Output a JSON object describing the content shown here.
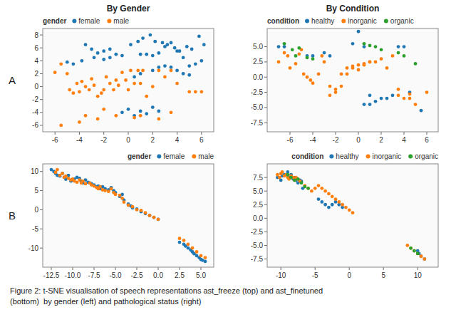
{
  "chart_data": [
    {
      "type": "scatter",
      "title": "By Gender",
      "legend_title": "gender",
      "legend": "upper left",
      "grid": false,
      "annotations": [
        "A"
      ],
      "series": [
        {
          "name": "female",
          "color": "#1f77b4",
          "x": [
            -5.0,
            -4.5,
            -3.8,
            -2.8,
            -2.0,
            -1.5,
            -1.0,
            -0.5,
            0.2,
            0.8,
            1.2,
            1.8,
            2.2,
            2.8,
            3.2,
            3.8,
            4.2,
            4.8,
            5.2,
            5.8,
            6.2,
            1.0,
            1.5,
            2.0,
            2.5,
            3.0,
            3.5,
            4.0,
            4.5,
            5.0,
            5.5,
            6.0,
            -3.5,
            -3.0,
            -2.5,
            -2.0,
            -1.5,
            0.5,
            1.0,
            2.0,
            2.5,
            3.0,
            3.5,
            4.0,
            4.5,
            5.0,
            -0.5,
            0.0,
            0.5,
            1.0,
            1.5,
            2.0,
            2.5
          ],
          "values": [
            3.8,
            3.5,
            4.0,
            4.5,
            5.5,
            5.8,
            5.0,
            4.8,
            6.5,
            7.0,
            7.5,
            8.0,
            7.0,
            6.8,
            6.5,
            6.0,
            5.5,
            6.2,
            5.8,
            7.8,
            6.5,
            5.0,
            5.0,
            4.8,
            5.2,
            6.2,
            6.8,
            5.5,
            4.5,
            3.2,
            3.5,
            4.0,
            6.5,
            5.8,
            5.2,
            4.2,
            4.5,
            1.5,
            2.0,
            2.5,
            3.0,
            3.2,
            3.0,
            2.5,
            2.0,
            1.8,
            -4.0,
            -3.5,
            -4.5,
            -3.8,
            -4.2,
            -3.2,
            -3.8
          ]
        },
        {
          "name": "male",
          "color": "#ff7f0e",
          "x": [
            -6.0,
            -5.5,
            -5.0,
            -4.8,
            -4.5,
            -4.2,
            -4.0,
            -3.8,
            -3.5,
            -3.2,
            -3.0,
            -2.8,
            -2.5,
            -2.2,
            -2.0,
            -1.8,
            -1.5,
            -1.2,
            -1.0,
            -0.8,
            -0.5,
            -0.2,
            0.0,
            0.2,
            0.5,
            0.8,
            1.0,
            1.2,
            1.5,
            2.0,
            2.5,
            3.0,
            3.5,
            4.0,
            5.0,
            5.5,
            6.0,
            -5.5,
            -4.0,
            -3.5,
            -2.5,
            -2.0,
            -1.0,
            0.5,
            1.0,
            2.5,
            3.5
          ],
          "values": [
            2.2,
            3.5,
            2.0,
            -0.5,
            -1.0,
            0.5,
            -0.8,
            0.8,
            0.0,
            -0.5,
            1.2,
            0.2,
            -1.5,
            -1.0,
            -0.5,
            1.5,
            0.5,
            -0.5,
            1.0,
            0.2,
            2.2,
            1.0,
            -0.5,
            2.5,
            0.5,
            2.5,
            0.5,
            2.5,
            -1.5,
            0.0,
            2.5,
            1.5,
            2.5,
            0.5,
            -0.8,
            -0.8,
            -0.8,
            -6.0,
            -5.5,
            -4.5,
            -5.0,
            -3.5,
            -4.5,
            -4.8,
            -4.5,
            -5.0,
            -4.0
          ]
        }
      ],
      "xlim": [
        -7,
        7
      ],
      "ylim": [
        -7,
        9
      ],
      "xticks": [
        -6,
        -4,
        -2,
        0,
        2,
        4,
        6
      ],
      "yticks": [
        -6,
        -4,
        -2,
        0,
        2,
        4,
        6,
        8
      ]
    },
    {
      "type": "scatter",
      "title": "By Condition",
      "legend_title": "condition",
      "legend": "upper left",
      "grid": false,
      "series": [
        {
          "name": "healthy",
          "color": "#1f77b4",
          "x": [
            -7.0,
            -6.5,
            -4.5,
            -4.0,
            -3.0,
            -2.5,
            0.5,
            1.0,
            1.5,
            2.0,
            2.5,
            3.0,
            3.5,
            4.0,
            4.5,
            5.5,
            -0.5,
            0.0,
            0.5,
            1.0
          ],
          "values": [
            5.0,
            5.0,
            3.5,
            3.5,
            4.0,
            3.5,
            -4.5,
            -4.5,
            -4.0,
            -3.5,
            -3.5,
            -3.0,
            5.0,
            5.0,
            -2.5,
            -5.5,
            5.5,
            7.5,
            5.0,
            -3.0
          ]
        },
        {
          "name": "inorganic",
          "color": "#ff7f0e",
          "x": [
            -7.0,
            -6.5,
            -6.2,
            -6.0,
            -5.5,
            -5.2,
            -5.0,
            -4.8,
            -4.5,
            -4.2,
            -4.0,
            -3.5,
            -3.2,
            -3.0,
            -2.5,
            -2.0,
            -1.5,
            -1.0,
            -0.5,
            0.0,
            0.5,
            1.0,
            1.5,
            2.0,
            2.5,
            3.0,
            3.5,
            4.0,
            4.5,
            5.0,
            6.0,
            -2.5,
            -2.0,
            -1.5,
            -1.0,
            -0.5,
            0.0,
            0.5,
            1.0,
            3.5,
            4.5
          ],
          "values": [
            2.5,
            4.0,
            3.5,
            1.5,
            2.2,
            3.8,
            4.5,
            0.5,
            0.0,
            -0.5,
            -1.0,
            0.5,
            3.5,
            2.5,
            -1.5,
            -2.0,
            -1.5,
            0.5,
            1.5,
            2.0,
            2.2,
            2.5,
            2.5,
            3.0,
            1.5,
            3.5,
            -2.0,
            -3.5,
            -2.8,
            -4.5,
            -2.5,
            -3.0,
            -2.5,
            0.5,
            1.5,
            1.8,
            1.2,
            2.0,
            2.5,
            -3.0,
            -3.5
          ]
        },
        {
          "name": "organic",
          "color": "#2ca02c",
          "x": [
            -6.5,
            -5.8,
            -5.5,
            -5.2,
            -4.5,
            -4.0,
            0.5,
            1.0,
            1.5,
            2.0,
            3.5,
            4.0,
            5.0
          ],
          "values": [
            5.5,
            4.5,
            3.5,
            4.8,
            3.2,
            3.0,
            5.5,
            5.2,
            5.0,
            4.5,
            4.0,
            3.5,
            2.2
          ]
        }
      ],
      "xlim": [
        -8,
        7
      ],
      "ylim": [
        -9,
        8
      ],
      "xticks": [
        -6,
        -4,
        -2,
        0,
        2,
        4,
        6
      ],
      "yticks": [
        -7.5,
        {
          "value": -5,
          "label": "-5.0"
        },
        -2.5,
        {
          "value": 0,
          "label": "0.0"
        },
        2.5,
        {
          "value": 5,
          "label": "5.0"
        }
      ]
    },
    {
      "type": "scatter",
      "legend_title": "gender",
      "legend": "upper right",
      "grid": false,
      "annotations": [
        "B"
      ],
      "series": [
        {
          "name": "female",
          "color": "#1f77b4",
          "x": [
            -12.5,
            -12.2,
            -12.0,
            -11.8,
            -11.5,
            -11.2,
            -11.0,
            -10.8,
            -10.5,
            -10.2,
            -10.0,
            -9.8,
            -9.5,
            -9.2,
            -9.0,
            -8.8,
            -8.5,
            -8.2,
            -8.0,
            -7.8,
            -7.5,
            -7.2,
            -7.0,
            -6.8,
            -6.5,
            -6.2,
            -5.8,
            -5.5,
            -5.2,
            -5.0,
            -4.5,
            -4.2,
            -4.0,
            -3.5,
            -3.2,
            -3.0,
            -2.5,
            -2.0,
            -1.5,
            -1.0,
            -0.5,
            0.0,
            2.5,
            3.0,
            3.2,
            3.5,
            3.8,
            4.0,
            4.2,
            4.5,
            4.8,
            5.0,
            5.2,
            5.5
          ],
          "values": [
            10.5,
            10.0,
            9.5,
            9.0,
            8.8,
            9.5,
            8.5,
            8.0,
            9.0,
            7.5,
            7.8,
            8.0,
            8.5,
            8.2,
            7.5,
            7.0,
            7.8,
            7.2,
            7.0,
            6.8,
            6.5,
            6.0,
            6.2,
            5.5,
            6.0,
            5.5,
            5.2,
            5.8,
            5.0,
            4.5,
            3.5,
            4.0,
            2.5,
            1.5,
            1.0,
            0.5,
            0.2,
            -0.5,
            -1.0,
            -1.5,
            -2.0,
            -2.5,
            -8.5,
            -9.0,
            -9.5,
            -10.0,
            -10.5,
            -11.0,
            -11.5,
            -12.0,
            -12.5,
            -13.0,
            -13.2,
            -13.5
          ]
        },
        {
          "name": "male",
          "color": "#ff7f0e",
          "x": [
            -12.0,
            -11.8,
            -11.5,
            -11.2,
            -11.0,
            -10.8,
            -10.5,
            -10.2,
            -10.0,
            -9.8,
            -9.5,
            -9.2,
            -9.0,
            -8.8,
            -8.5,
            -8.0,
            -7.8,
            -7.5,
            -7.2,
            -7.0,
            -6.8,
            -6.5,
            -6.2,
            -5.8,
            -5.5,
            -5.2,
            -5.0,
            -4.5,
            -4.2,
            -4.0,
            -3.5,
            -3.0,
            -2.5,
            -2.0,
            -1.5,
            -1.0,
            -0.5,
            0.0,
            2.5,
            3.0,
            3.5,
            4.0,
            4.5,
            5.0,
            5.5
          ],
          "values": [
            9.8,
            10.5,
            9.0,
            9.5,
            8.5,
            8.8,
            8.2,
            7.8,
            8.0,
            7.5,
            7.2,
            7.8,
            7.0,
            7.5,
            6.8,
            7.0,
            6.5,
            6.2,
            5.8,
            5.5,
            6.0,
            5.2,
            5.0,
            4.8,
            5.5,
            4.5,
            4.0,
            3.8,
            3.0,
            2.0,
            1.2,
            0.8,
            0.0,
            -0.2,
            -0.8,
            -1.5,
            -2.0,
            -2.5,
            -7.5,
            -8.0,
            -9.0,
            -10.0,
            -11.0,
            -12.0,
            -12.5
          ]
        }
      ],
      "xlim": [
        -13.5,
        6.5
      ],
      "ylim": [
        -15,
        12
      ],
      "xticks": [
        -12.5,
        {
          "value": -10,
          "label": "-10.0"
        },
        -7.5,
        {
          "value": -5,
          "label": "-5.0"
        },
        -2.5,
        {
          "value": 0,
          "label": "0.0"
        },
        2.5,
        {
          "value": 5,
          "label": "5.0"
        }
      ],
      "yticks": [
        -10,
        -5,
        0,
        5,
        10
      ]
    },
    {
      "type": "scatter",
      "legend_title": "condition",
      "legend": "upper right",
      "grid": false,
      "series": [
        {
          "name": "healthy",
          "color": "#1f77b4",
          "x": [
            -10.5,
            -10.0,
            -9.8,
            -9.5,
            -9.0,
            -8.8,
            -8.5,
            -8.2,
            -8.0,
            -7.8,
            -7.5,
            -7.2,
            -7.0,
            -6.8,
            -4.5,
            -4.0,
            -3.5,
            -3.0,
            -2.5,
            -2.0,
            -1.5,
            -1.0,
            10.0,
            10.2,
            10.5,
            11.0
          ],
          "values": [
            7.5,
            7.0,
            7.8,
            8.0,
            8.5,
            7.5,
            8.0,
            7.2,
            7.5,
            7.0,
            6.5,
            7.0,
            6.8,
            5.5,
            3.5,
            3.0,
            2.5,
            2.0,
            2.5,
            3.0,
            2.5,
            2.0,
            -6.0,
            -6.5,
            -7.0,
            -7.5
          ]
        },
        {
          "name": "inorganic",
          "color": "#ff7f0e",
          "x": [
            -10.5,
            -10.2,
            -10.0,
            -9.8,
            -9.5,
            -9.2,
            -9.0,
            -8.8,
            -8.5,
            -8.2,
            -8.0,
            -7.8,
            -7.5,
            -7.2,
            -6.5,
            -6.0,
            -5.5,
            -5.0,
            -4.5,
            -4.0,
            -3.5,
            -3.0,
            -2.5,
            -2.0,
            -1.5,
            -1.0,
            -0.5,
            0.0,
            0.5,
            8.5,
            9.0,
            9.5,
            10.0,
            10.5,
            11.0
          ],
          "values": [
            8.0,
            7.5,
            8.2,
            8.5,
            7.8,
            8.0,
            7.5,
            7.2,
            7.8,
            7.5,
            7.0,
            7.5,
            7.2,
            6.8,
            6.0,
            5.5,
            5.0,
            5.5,
            6.0,
            5.5,
            5.0,
            4.5,
            4.0,
            3.5,
            3.0,
            2.5,
            2.0,
            1.5,
            1.0,
            -5.0,
            -5.5,
            -6.0,
            -6.5,
            -7.0,
            -7.5
          ]
        },
        {
          "name": "organic",
          "color": "#2ca02c",
          "x": [
            -9.0,
            -8.5,
            -8.0,
            -7.5,
            -7.0,
            -6.5,
            -6.0,
            9.0,
            9.5,
            10.0
          ],
          "values": [
            8.0,
            7.5,
            7.0,
            7.2,
            6.5,
            5.8,
            5.5,
            -5.5,
            -6.0,
            -6.5
          ]
        }
      ],
      "xlim": [
        -12,
        13
      ],
      "ylim": [
        -9,
        10
      ],
      "xticks": [
        -10,
        -5,
        0,
        5,
        10
      ],
      "yticks": [
        -7.5,
        {
          "value": -5,
          "label": "-5.0"
        },
        -2.5,
        {
          "value": 0,
          "label": "0.0"
        },
        2.5,
        {
          "value": 5,
          "label": "5.0"
        },
        7.5
      ]
    }
  ],
  "caption": "Figure 2: t-SNE visualisation of speech representations ast_freeze (top) and ast_finetuned\n(bottom)  by gender (left) and pathological status (right)"
}
